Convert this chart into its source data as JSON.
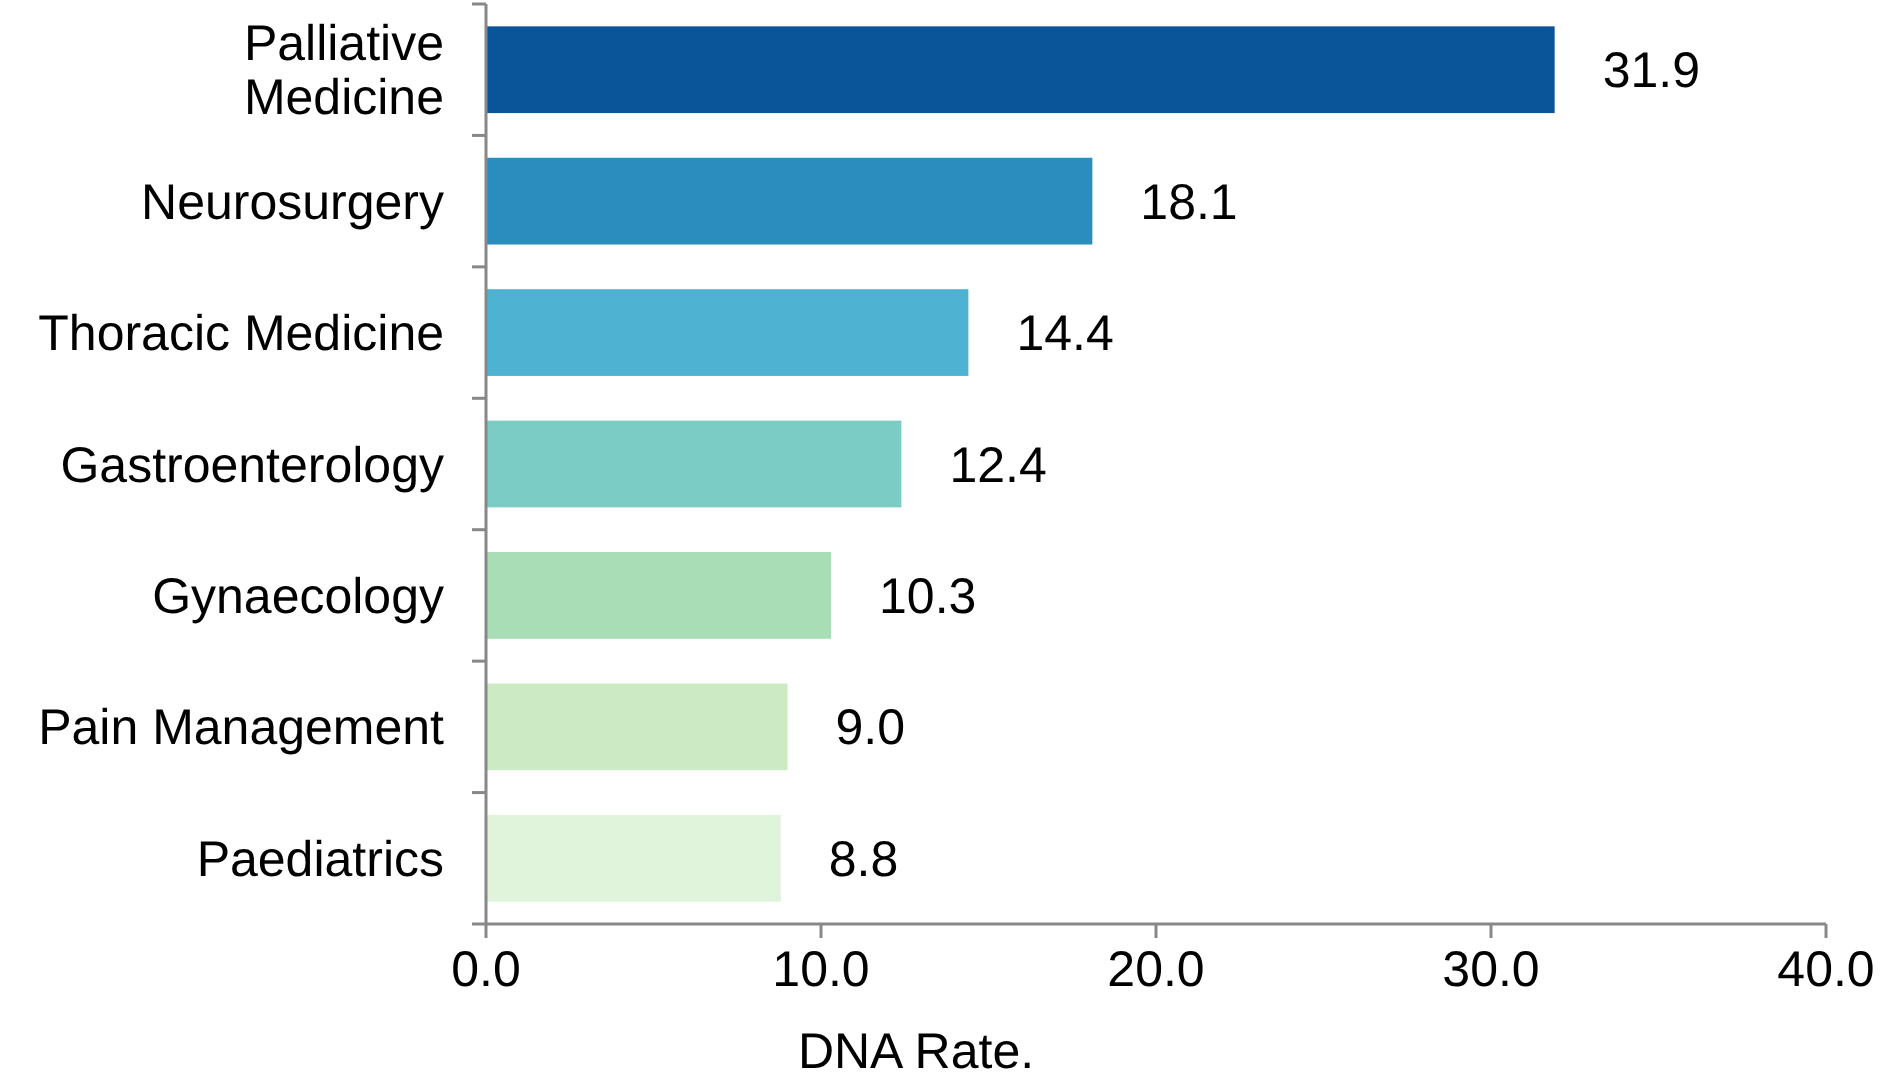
{
  "chart_data": {
    "type": "bar",
    "orientation": "horizontal",
    "xlabel": "DNA Rate.",
    "categories": [
      "Palliative Medicine",
      "Neurosurgery",
      "Thoracic Medicine",
      "Gastroenterology",
      "Gynaecology",
      "Pain Management",
      "Paediatrics"
    ],
    "values": [
      31.9,
      18.1,
      14.4,
      12.4,
      10.3,
      9.0,
      8.8
    ],
    "colors": [
      "#0a5499",
      "#2b8cbe",
      "#4eb3d3",
      "#7bccc4",
      "#a8ddb5",
      "#ccebc5",
      "#e0f3db"
    ],
    "value_labels": [
      "31.9",
      "18.1",
      "14.4",
      "12.4",
      "10.3",
      "9.0",
      "8.8"
    ],
    "xlim": [
      0,
      40
    ],
    "xticks": [
      {
        "value": 0,
        "label": "0.0"
      },
      {
        "value": 10,
        "label": "10.0"
      },
      {
        "value": 20,
        "label": "20.0"
      },
      {
        "value": 30,
        "label": "30.0"
      },
      {
        "value": 40,
        "label": "40.0"
      }
    ],
    "grid": false
  }
}
